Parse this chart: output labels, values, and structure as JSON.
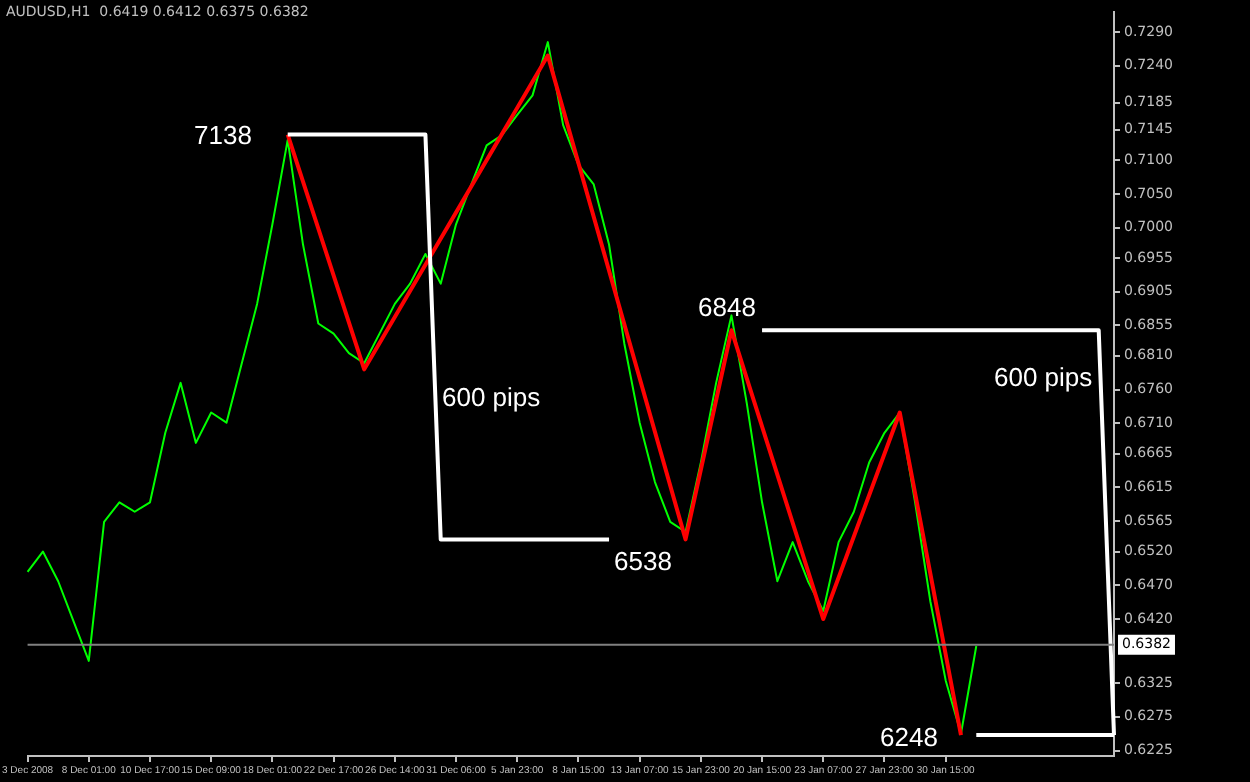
{
  "chart_data": {
    "type": "line",
    "title": "AUDUSD,H1  0.6419 0.6412 0.6375 0.6382",
    "categories": [
      "3 Dec 2008",
      null,
      null,
      null,
      "8 Dec 01:00",
      null,
      null,
      null,
      "10 Dec 17:00",
      null,
      null,
      null,
      "15 Dec 09:00",
      null,
      null,
      null,
      "18 Dec 01:00",
      null,
      null,
      null,
      "22 Dec 17:00",
      null,
      null,
      null,
      "26 Dec 14:00",
      null,
      null,
      null,
      "31 Dec 06:00",
      null,
      null,
      null,
      "5 Jan 23:00",
      null,
      null,
      null,
      "8 Jan 15:00",
      null,
      null,
      null,
      "13 Jan 07:00",
      null,
      null,
      null,
      "15 Jan 23:00",
      null,
      null,
      null,
      "20 Jan 15:00",
      null,
      null,
      null,
      "23 Jan 07:00",
      null,
      null,
      null,
      "27 Jan 23:00",
      null,
      null,
      null,
      "30 Jan 15:00",
      null,
      null,
      null,
      null,
      null,
      null,
      null,
      null,
      null,
      null,
      null
    ],
    "series": [
      {
        "color": "#00ff00",
        "values": [
          0.649,
          0.652,
          0.6476,
          0.6417,
          0.6358,
          0.6564,
          0.6593,
          0.6579,
          0.6593,
          0.6696,
          0.677,
          0.6681,
          0.6726,
          0.6711,
          0.6799,
          0.6887,
          0.7005,
          0.713,
          0.6975,
          0.6858,
          0.6843,
          0.6814,
          0.6799,
          0.6843,
          0.6887,
          0.6917,
          0.6961,
          0.6917,
          0.7005,
          0.7064,
          0.7122,
          0.7137,
          0.7167,
          0.7196,
          0.7275,
          0.7152,
          0.7093,
          0.7064,
          0.6975,
          0.6828,
          0.6711,
          0.6623,
          0.6564,
          0.6549,
          0.6652,
          0.677,
          0.687,
          0.674,
          0.6593,
          0.6476,
          0.6534,
          0.6476,
          0.6432,
          0.6534,
          0.6579,
          0.6652,
          0.6696,
          0.6726,
          0.6593,
          0.6446,
          0.6329,
          0.625,
          0.638,
          null,
          null,
          null,
          null,
          null,
          null,
          null,
          null,
          null
        ]
      },
      {
        "color": "#ff0000",
        "values": [
          null,
          null,
          null,
          null,
          null,
          null,
          null,
          null,
          null,
          null,
          null,
          null,
          null,
          null,
          null,
          null,
          null,
          0.7138,
          null,
          null,
          null,
          null,
          0.679,
          null,
          null,
          null,
          null,
          null,
          null,
          null,
          null,
          null,
          null,
          null,
          0.7255,
          null,
          null,
          null,
          null,
          null,
          null,
          null,
          null,
          0.6538,
          null,
          null,
          0.6848,
          null,
          null,
          null,
          null,
          null,
          0.642,
          null,
          null,
          null,
          null,
          0.6726,
          null,
          null,
          null,
          0.6248,
          null,
          null,
          null,
          null,
          null,
          null,
          null,
          null,
          null,
          null
        ]
      },
      {
        "color": "#ffffff",
        "values": [
          null,
          null,
          null,
          null,
          null,
          null,
          null,
          null,
          null,
          null,
          null,
          null,
          null,
          null,
          null,
          null,
          null,
          0.7138,
          null,
          null,
          null,
          null,
          null,
          null,
          null,
          null,
          0.7138,
          0.6538,
          null,
          null,
          null,
          null,
          null,
          null,
          null,
          null,
          null,
          null,
          0.6538,
          null,
          null,
          null,
          null,
          null,
          null,
          null,
          null,
          null,
          null,
          null,
          null,
          null,
          null,
          null,
          null,
          null,
          null,
          null,
          null,
          null,
          null,
          null,
          null,
          null,
          null,
          null,
          null,
          null,
          null,
          null,
          null,
          null
        ]
      },
      {
        "color": "#ffffff",
        "values": [
          null,
          null,
          null,
          null,
          null,
          null,
          null,
          null,
          null,
          null,
          null,
          null,
          null,
          null,
          null,
          null,
          null,
          null,
          null,
          null,
          null,
          null,
          null,
          null,
          null,
          null,
          null,
          null,
          null,
          null,
          null,
          null,
          null,
          null,
          null,
          null,
          null,
          null,
          null,
          null,
          null,
          null,
          null,
          null,
          null,
          null,
          null,
          null,
          0.6848,
          null,
          null,
          null,
          null,
          null,
          null,
          null,
          null,
          null,
          null,
          null,
          null,
          null,
          null,
          null,
          null,
          null,
          null,
          null,
          null,
          null,
          0.6848,
          0.6248
        ]
      },
      {
        "color": "#ffffff",
        "values": [
          null,
          null,
          null,
          null,
          null,
          null,
          null,
          null,
          null,
          null,
          null,
          null,
          null,
          null,
          null,
          null,
          null,
          null,
          null,
          null,
          null,
          null,
          null,
          null,
          null,
          null,
          null,
          null,
          null,
          null,
          null,
          null,
          null,
          null,
          null,
          null,
          null,
          null,
          null,
          null,
          null,
          null,
          null,
          null,
          null,
          null,
          null,
          null,
          null,
          null,
          null,
          null,
          null,
          null,
          null,
          null,
          null,
          null,
          null,
          null,
          null,
          null,
          0.6248,
          null,
          null,
          null,
          null,
          null,
          null,
          null,
          null,
          0.6248
        ]
      }
    ],
    "ylim": [
      0.6217,
      0.7319
    ],
    "yticks": [
      {
        "value": 0.729,
        "label": "0.7290"
      },
      {
        "value": 0.724,
        "label": "0.7240"
      },
      {
        "value": 0.7185,
        "label": "0.7185"
      },
      {
        "value": 0.7145,
        "label": "0.7145"
      },
      {
        "value": 0.71,
        "label": "0.7100"
      },
      {
        "value": 0.705,
        "label": "0.7050"
      },
      {
        "value": 0.7,
        "label": "0.7000"
      },
      {
        "value": 0.6955,
        "label": "0.6955"
      },
      {
        "value": 0.6905,
        "label": "0.6905"
      },
      {
        "value": 0.6855,
        "label": "0.6855"
      },
      {
        "value": 0.681,
        "label": "0.6810"
      },
      {
        "value": 0.676,
        "label": "0.6760"
      },
      {
        "value": 0.671,
        "label": "0.6710"
      },
      {
        "value": 0.6665,
        "label": "0.6665"
      },
      {
        "value": 0.6615,
        "label": "0.6615"
      },
      {
        "value": 0.6565,
        "label": "0.6565"
      },
      {
        "value": 0.652,
        "label": "0.6520"
      },
      {
        "value": 0.647,
        "label": "0.6470"
      },
      {
        "value": 0.642,
        "label": "0.6420"
      },
      {
        "value": 0.6325,
        "label": "0.6325"
      },
      {
        "value": 0.6275,
        "label": "0.6275"
      },
      {
        "value": 0.6225,
        "label": "0.6225"
      }
    ],
    "ref_lines": [
      {
        "axis": "y",
        "value": 0.6382,
        "label": "0.6382",
        "color": "#808080"
      }
    ],
    "annotations": [
      "7138",
      "600 pips",
      "6538",
      "6848",
      "600 pips",
      "6248"
    ],
    "marker": "none",
    "legend": false,
    "grid": false
  }
}
